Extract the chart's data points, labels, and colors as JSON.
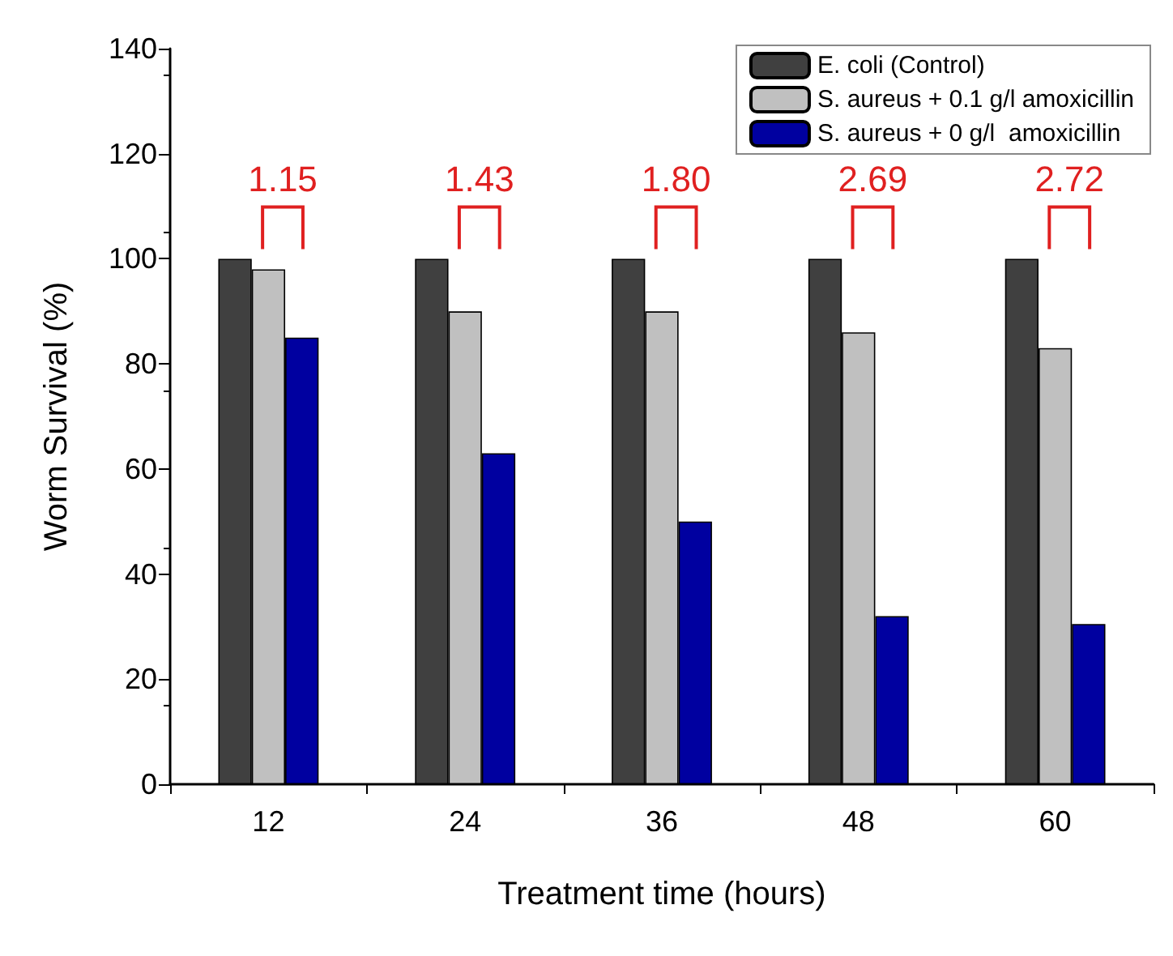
{
  "chart_data": {
    "type": "bar",
    "xlabel": "Treatment time (hours)",
    "ylabel": "Worm Survival (%)",
    "categories": [
      "12",
      "24",
      "36",
      "48",
      "60"
    ],
    "series": [
      {
        "name": "E. coli (Control)",
        "color": "#404040",
        "values": [
          100,
          100,
          100,
          100,
          100
        ]
      },
      {
        "name": "S. aureus + 0.1 g/l amoxicillin",
        "color": "#c0c0c0",
        "values": [
          98,
          90,
          90,
          86,
          83
        ]
      },
      {
        "name": "S. aureus + 0 g/l  amoxicillin",
        "color": "#0000a0",
        "values": [
          85,
          63,
          50,
          32,
          30.5
        ]
      }
    ],
    "ylim": [
      0,
      140
    ],
    "yticks": [
      0,
      20,
      40,
      60,
      80,
      100,
      120,
      140
    ],
    "grid": false,
    "legend": "top right",
    "annotations": [
      "1.15",
      "1.43",
      "1.80",
      "2.69",
      "2.72"
    ]
  }
}
